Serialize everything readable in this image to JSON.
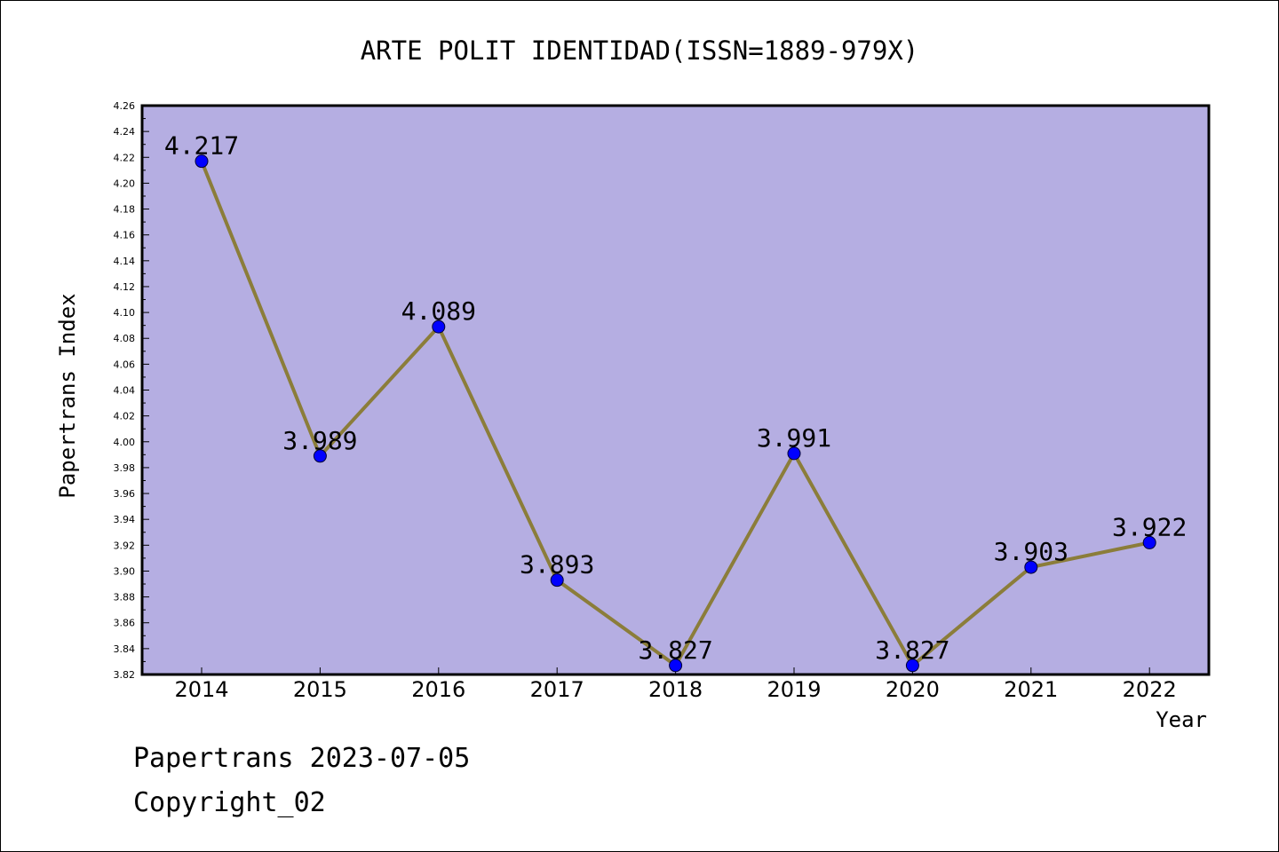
{
  "chart_data": {
    "type": "line",
    "title": "ARTE POLIT IDENTIDAD(ISSN=1889-979X)",
    "xlabel": "Year",
    "ylabel": "Papertrans Index",
    "categories": [
      "2014",
      "2015",
      "2016",
      "2017",
      "2018",
      "2019",
      "2020",
      "2021",
      "2022"
    ],
    "series": [
      {
        "values": [
          4.217,
          3.989,
          4.089,
          3.893,
          3.827,
          3.991,
          3.827,
          3.903,
          3.922
        ],
        "labels": [
          "4.217",
          "3.989",
          "4.089",
          "3.893",
          "3.827",
          "3.991",
          "3.827",
          "3.903",
          "3.922"
        ]
      }
    ],
    "ylim": [
      3.82,
      4.26
    ],
    "yticks": [
      "3.82",
      "3.84",
      "3.86",
      "3.88",
      "3.90",
      "3.92",
      "3.94",
      "3.96",
      "3.98",
      "4.00",
      "4.02",
      "4.04",
      "4.06",
      "4.08",
      "4.10",
      "4.12",
      "4.14",
      "4.16",
      "4.18",
      "4.20",
      "4.22",
      "4.24",
      "4.26"
    ],
    "grid": false,
    "legend": "none",
    "colors": {
      "plot_background": "#b5aee2",
      "line": "#8b7d3a",
      "marker": "#0000ff"
    }
  },
  "footer": {
    "line1": "Papertrans 2023-07-05",
    "line2": "Copyright_02"
  }
}
